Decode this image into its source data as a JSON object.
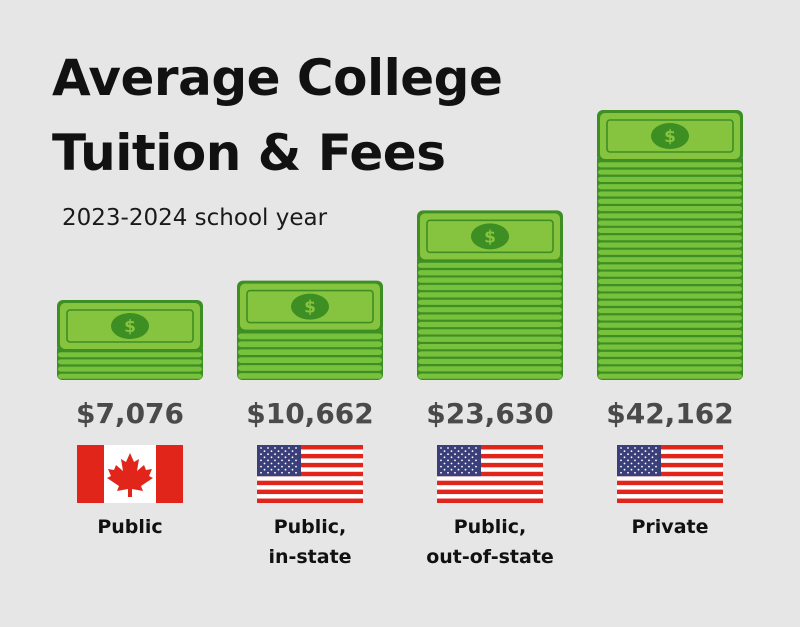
{
  "header": {
    "title_line1": "Average College",
    "title_line2": "Tuition & Fees",
    "subtitle": "2023-2024 school year"
  },
  "colors": {
    "background": "#e6e6e6",
    "bill_top": "#86c440",
    "bill_edge": "#3d8f24",
    "bill_layer": "#78c13c",
    "price_text": "#4a4a4a",
    "flag_red": "#e1251b",
    "flag_blue": "#3a3f7a"
  },
  "chart_data": {
    "type": "bar",
    "title": "Average College Tuition & Fees",
    "subtitle": "2023-2024 school year",
    "categories": [
      "Public",
      "Public, in-state",
      "Public, out-of-state",
      "Private"
    ],
    "values": [
      7076,
      10662,
      23630,
      42162
    ],
    "value_labels": [
      "$7,076",
      "$10,662",
      "$23,630",
      "$42,162"
    ],
    "category_lines": [
      [
        "Public"
      ],
      [
        "Public,",
        "in-state"
      ],
      [
        "Public,",
        "out-of-state"
      ],
      [
        "Private"
      ]
    ],
    "flags": [
      "canada-flag",
      "usa-flag",
      "usa-flag",
      "usa-flag"
    ],
    "bar_icon": "dollar-bill-stack-icon"
  }
}
